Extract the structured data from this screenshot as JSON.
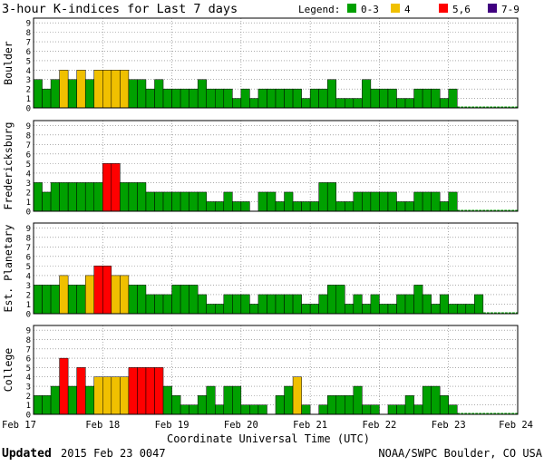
{
  "title": "3-hour K-indices for Last 7 days",
  "legend": {
    "label": "Legend:",
    "items": [
      {
        "label": "0-3",
        "color": "#00a000"
      },
      {
        "label": "4",
        "color": "#f0c000"
      },
      {
        "label": "5,6",
        "color": "#ff0000"
      },
      {
        "label": "7-9",
        "color": "#400080"
      }
    ]
  },
  "footer": {
    "updated_label": "Updated",
    "updated_value": "2015 Feb 23 0047",
    "source": "NOAA/SWPC Boulder, CO USA"
  },
  "chart_data": {
    "type": "bar",
    "xlabel": "Coordinate Universal Time (UTC)",
    "x_ticks": [
      "Feb 17",
      "Feb 18",
      "Feb 19",
      "Feb 20",
      "Feb 21",
      "Feb 22",
      "Feb 23",
      "Feb 24"
    ],
    "y_ticks": [
      "0",
      "1",
      "2",
      "3",
      "4",
      "5",
      "6",
      "7",
      "8",
      "9"
    ],
    "ylim": [
      0,
      9
    ],
    "bars_per_day": 8,
    "color_thresholds": {
      "green": "0-3",
      "yellow": "4",
      "red": "5-6",
      "purple": "7-9"
    },
    "series": [
      {
        "name": "Boulder",
        "values": [
          3,
          2,
          3,
          4,
          3,
          4,
          3,
          4,
          4,
          4,
          4,
          3,
          3,
          2,
          3,
          2,
          2,
          2,
          2,
          3,
          2,
          2,
          2,
          1,
          2,
          1,
          2,
          2,
          2,
          2,
          2,
          1,
          2,
          2,
          3,
          1,
          1,
          1,
          3,
          2,
          2,
          2,
          1,
          1,
          2,
          2,
          2,
          1,
          2
        ]
      },
      {
        "name": "Fredericksburg",
        "values": [
          3,
          2,
          3,
          3,
          3,
          3,
          3,
          3,
          5,
          5,
          3,
          3,
          3,
          2,
          2,
          2,
          2,
          2,
          2,
          2,
          1,
          1,
          2,
          1,
          1,
          0,
          2,
          2,
          1,
          2,
          1,
          1,
          1,
          3,
          3,
          1,
          1,
          2,
          2,
          2,
          2,
          2,
          1,
          1,
          2,
          2,
          2,
          1,
          2
        ]
      },
      {
        "name": "Est. Planetary",
        "values": [
          3,
          3,
          3,
          4,
          3,
          3,
          4,
          5,
          5,
          4,
          4,
          3,
          3,
          2,
          2,
          2,
          3,
          3,
          3,
          2,
          1,
          1,
          2,
          2,
          2,
          1,
          2,
          2,
          2,
          2,
          2,
          1,
          1,
          2,
          3,
          3,
          1,
          2,
          1,
          2,
          1,
          1,
          2,
          2,
          3,
          2,
          1,
          2,
          1,
          1,
          1,
          2
        ]
      },
      {
        "name": "College",
        "values": [
          2,
          2,
          3,
          6,
          3,
          5,
          3,
          4,
          4,
          4,
          4,
          5,
          5,
          5,
          5,
          3,
          2,
          1,
          1,
          2,
          3,
          1,
          3,
          3,
          1,
          1,
          1,
          0,
          2,
          3,
          4,
          1,
          0,
          1,
          2,
          2,
          2,
          3,
          1,
          1,
          0,
          1,
          1,
          2,
          1,
          3,
          3,
          2,
          1
        ]
      }
    ]
  }
}
